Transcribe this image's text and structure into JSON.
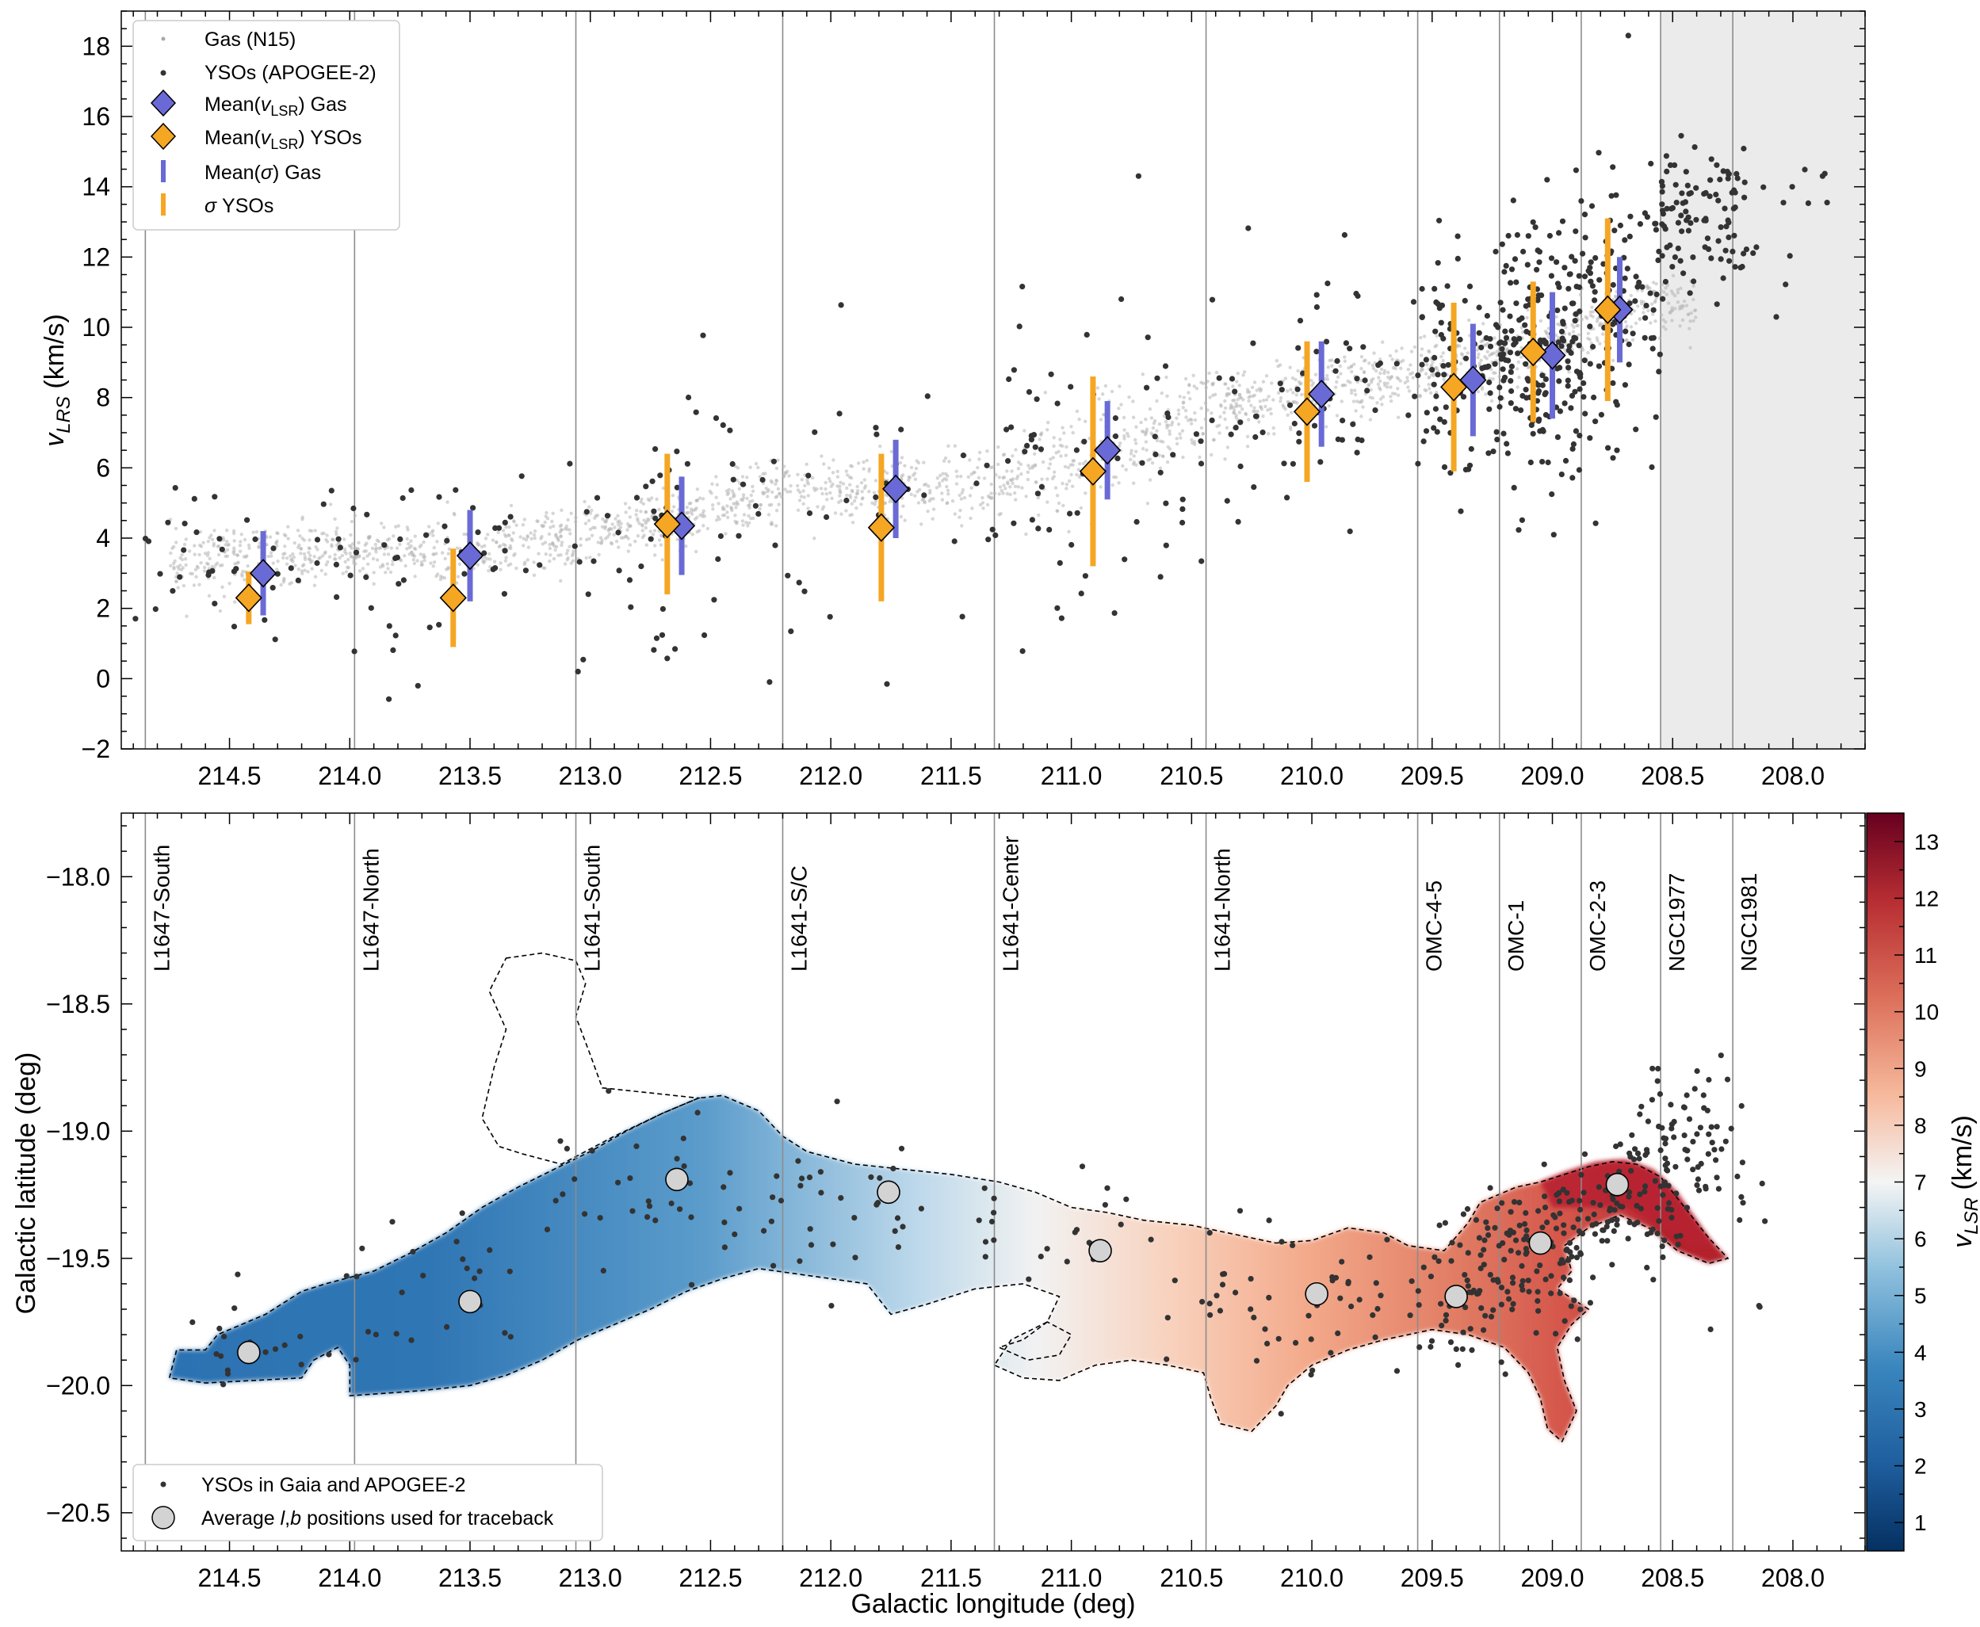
{
  "chart_data": [
    {
      "type": "scatter",
      "title": "",
      "xlabel": "",
      "ylabel": "v_LRS (km/s)",
      "ylabel_main": "v",
      "ylabel_sub": "LRS",
      "ylabel_unit": " (km/s)",
      "xlim": [
        214.95,
        207.7
      ],
      "ylim": [
        -2,
        19
      ],
      "x_ticks": [
        "214.5",
        "214.0",
        "213.5",
        "213.0",
        "212.5",
        "212.0",
        "211.5",
        "211.0",
        "210.5",
        "210.0",
        "209.5",
        "209.0",
        "208.5",
        "208.0"
      ],
      "y_ticks": [
        "−2",
        "0",
        "2",
        "4",
        "6",
        "8",
        "10",
        "12",
        "14",
        "16",
        "18"
      ],
      "region_boundaries": [
        214.85,
        213.98,
        213.06,
        212.2,
        211.32,
        210.44,
        209.56,
        209.22,
        208.88,
        208.55,
        208.25
      ],
      "shaded_range": [
        208.55,
        207.7
      ],
      "legend": {
        "position": "upper-left",
        "entries": [
          "Gas (N15)",
          "YSOs (APOGEE-2)",
          "Mean(v_LSR) Gas",
          "Mean(v_LSR) YSOs",
          "Mean(σ) Gas",
          "σ YSOs"
        ],
        "entry_rich": {
          "mean_gas": [
            "Mean(",
            "v",
            "LSR",
            ") Gas"
          ],
          "mean_ysos": [
            "Mean(",
            "v",
            "LSR",
            ") YSOs"
          ],
          "sigma_gas": [
            "Mean(",
            "σ",
            ") Gas"
          ],
          "sigma_ysos": [
            "",
            "σ",
            " YSOs"
          ]
        }
      },
      "gas_ridge": {
        "x": [
          214.75,
          214.4,
          214.0,
          213.6,
          213.2,
          212.8,
          212.5,
          212.2,
          211.9,
          211.6,
          211.3,
          211.0,
          210.7,
          210.45,
          210.2,
          210.0,
          209.8,
          209.5,
          209.3,
          209.0,
          208.8,
          208.6,
          208.45,
          208.4
        ],
        "v": [
          3.3,
          3.5,
          3.6,
          3.6,
          3.8,
          4.3,
          4.8,
          5.3,
          5.4,
          5.5,
          5.5,
          6.2,
          7.0,
          7.6,
          8.0,
          8.2,
          8.4,
          8.8,
          9.0,
          9.5,
          10.0,
          10.8,
          10.5,
          10.2
        ]
      },
      "series": [
        {
          "name": "Mean(v_LSR) Gas",
          "x": [
            214.36,
            213.5,
            212.62,
            211.73,
            210.85,
            209.96,
            209.33,
            209.0,
            208.72
          ],
          "y": [
            3.0,
            3.5,
            4.35,
            5.4,
            6.5,
            8.1,
            8.5,
            9.2,
            10.5
          ],
          "sigma": [
            1.2,
            1.3,
            1.4,
            1.4,
            1.4,
            1.5,
            1.6,
            1.8,
            1.5
          ],
          "color": "#6a6ad6"
        },
        {
          "name": "Mean(v_LSR) YSOs",
          "x": [
            214.42,
            213.57,
            212.68,
            211.79,
            210.91,
            210.02,
            209.41,
            209.08,
            208.77
          ],
          "y": [
            2.3,
            2.3,
            4.4,
            4.3,
            5.9,
            7.6,
            8.3,
            9.3,
            10.5
          ],
          "sigma": [
            0.75,
            1.4,
            2.0,
            2.1,
            2.7,
            2.0,
            2.4,
            2.0,
            2.6
          ],
          "color": "#f5a623"
        }
      ]
    },
    {
      "type": "heatmap",
      "title": "",
      "xlabel": "Galactic longitude (deg)",
      "ylabel": "Galactic latitude (deg)",
      "xlim": [
        214.95,
        207.7
      ],
      "ylim": [
        -20.65,
        -17.75
      ],
      "x_ticks": [
        "214.5",
        "214.0",
        "213.5",
        "213.0",
        "212.5",
        "212.0",
        "211.5",
        "211.0",
        "210.5",
        "210.0",
        "209.5",
        "209.0",
        "208.5",
        "208.0"
      ],
      "y_ticks": [
        "−18.0",
        "−18.5",
        "−19.0",
        "−19.5",
        "−20.0",
        "−20.5"
      ],
      "region_boundaries": [
        214.85,
        213.98,
        213.06,
        212.2,
        211.32,
        210.44,
        209.56,
        209.22,
        208.88,
        208.55,
        208.25
      ],
      "region_labels": [
        "L1647-South",
        "L1647-North",
        "L1641-South",
        "L1641-S/C",
        "L1641-Center",
        "L1641-North",
        "OMC-4-5",
        "OMC-1",
        "OMC-2-3",
        "NGC1977",
        "NGC1981"
      ],
      "colorbar": {
        "label_main": "v",
        "label_sub": "LSR",
        "label_unit": " (km/s)",
        "range": [
          0.5,
          13.5
        ],
        "ticks": [
          "1",
          "2",
          "3",
          "4",
          "5",
          "6",
          "7",
          "8",
          "9",
          "10",
          "11",
          "12",
          "13"
        ]
      },
      "average_positions": {
        "l": [
          214.42,
          213.5,
          212.64,
          211.76,
          210.88,
          209.98,
          209.4,
          209.05,
          208.73
        ],
        "b": [
          -19.87,
          -19.67,
          -19.19,
          -19.24,
          -19.47,
          -19.64,
          -19.65,
          -19.44,
          -19.21
        ],
        "v": [
          3.0,
          3.5,
          4.35,
          5.4,
          6.5,
          8.1,
          8.5,
          9.2,
          10.5
        ]
      },
      "legend": {
        "position": "lower-left",
        "entries": [
          "YSOs in Gaia and APOGEE-2",
          "Average l,b positions used for traceback"
        ],
        "entry_rich": {
          "avg": [
            "Average ",
            "l",
            ",",
            "b",
            " positions used for traceback"
          ]
        }
      }
    }
  ]
}
